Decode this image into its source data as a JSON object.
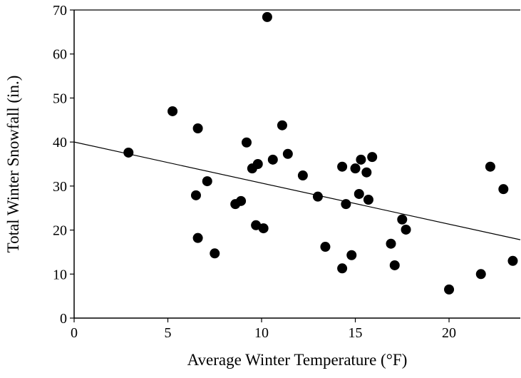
{
  "chart_data": {
    "type": "scatter",
    "x_label": "Average Winter Temperature (°F)",
    "y_label": "Total Winter Snowfall (in.)",
    "xlim": [
      0,
      23.8
    ],
    "ylim": [
      0,
      70
    ],
    "xticks": [
      0,
      5,
      10,
      15,
      20
    ],
    "yticks": [
      0,
      10,
      20,
      30,
      40,
      50,
      60,
      70
    ],
    "color": "#000000",
    "x": [
      2.9,
      5.25,
      6.6,
      6.5,
      6.6,
      7.1,
      7.5,
      8.6,
      8.9,
      9.2,
      9.5,
      9.8,
      9.7,
      10.1,
      10.3,
      10.6,
      11.1,
      11.4,
      12.2,
      13.0,
      13.4,
      14.3,
      14.3,
      14.5,
      14.8,
      15.0,
      15.2,
      15.3,
      15.6,
      15.7,
      15.9,
      16.9,
      17.1,
      17.5,
      17.7,
      20.0,
      21.7,
      22.2,
      22.9,
      23.4
    ],
    "values": [
      37.6,
      47.0,
      43.1,
      27.9,
      18.2,
      31.1,
      14.7,
      25.9,
      26.6,
      39.9,
      34.0,
      35.0,
      21.1,
      20.4,
      68.4,
      36.0,
      43.8,
      37.3,
      32.4,
      27.6,
      16.2,
      34.4,
      11.3,
      25.9,
      14.3,
      34.0,
      28.2,
      36.0,
      33.1,
      26.9,
      36.6,
      16.9,
      12.0,
      22.4,
      20.1,
      6.5,
      10.0,
      34.4,
      29.3,
      13.0
    ],
    "trend_line": {
      "x": [
        0,
        23.8
      ],
      "y": [
        40.0,
        17.8
      ]
    }
  }
}
